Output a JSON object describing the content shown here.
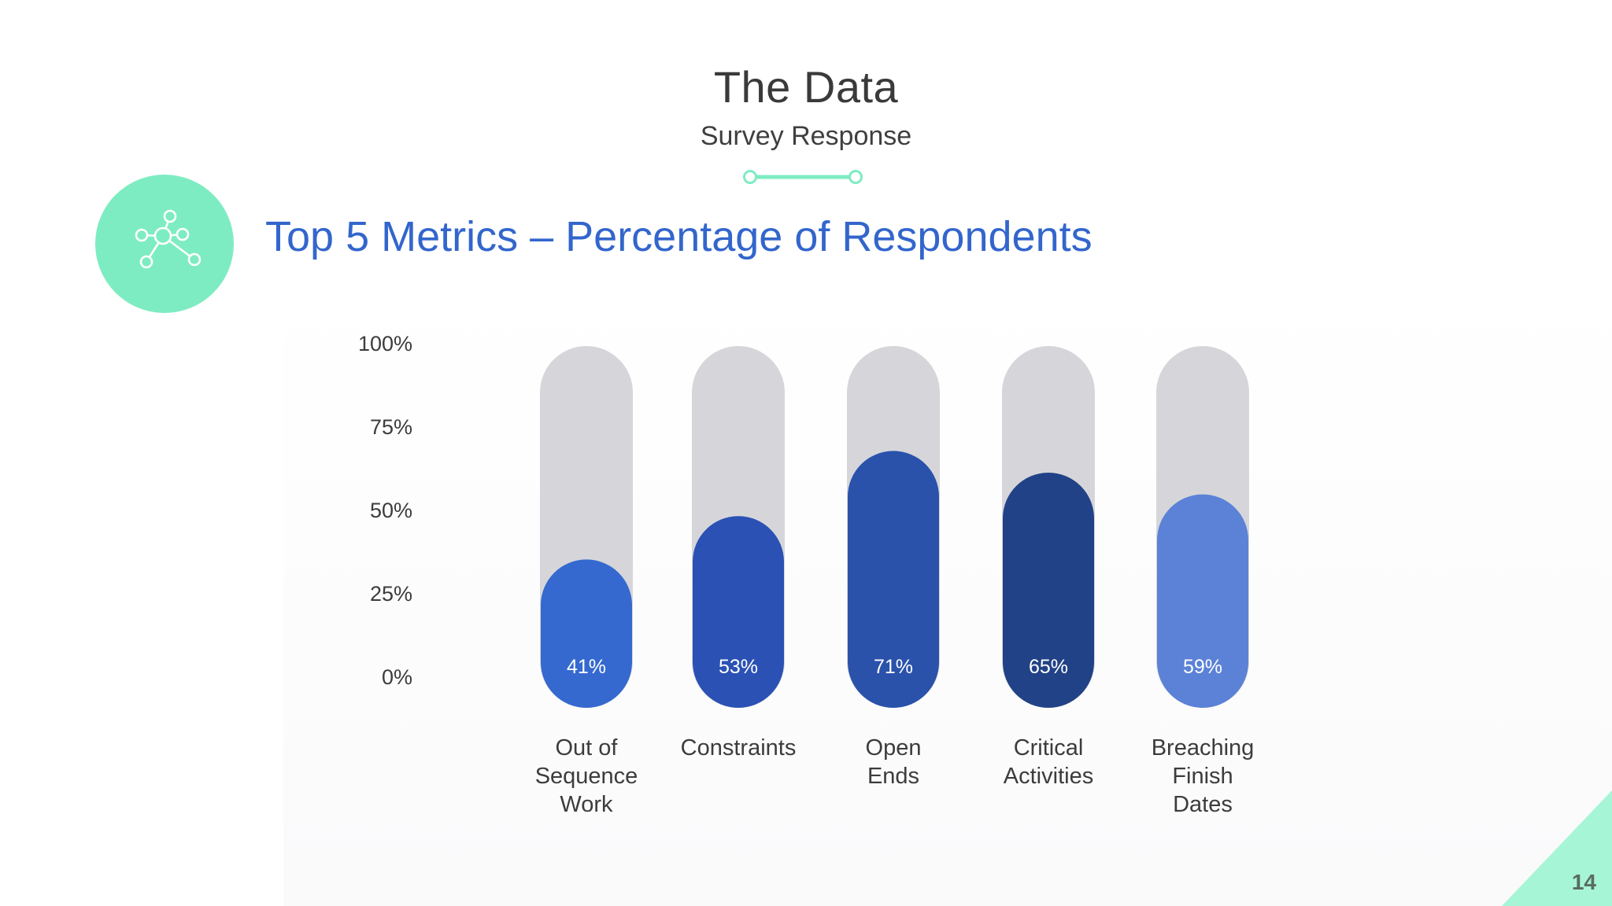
{
  "header": {
    "title": "The Data",
    "subtitle": "Survey Response"
  },
  "section": {
    "heading": "Top 5 Metrics – Percentage of Respondents",
    "icon": "network-icon"
  },
  "colors": {
    "accent": "#7eecc3",
    "heading": "#3366cc",
    "track": "#d6d6da"
  },
  "chart_data": {
    "type": "bar",
    "title": "",
    "xlabel": "",
    "ylabel": "",
    "ylim": [
      0,
      100
    ],
    "yticks": [
      "0%",
      "25%",
      "50%",
      "75%",
      "100%"
    ],
    "categories": [
      [
        "Out of",
        "Sequence",
        "Work"
      ],
      [
        "Constraints"
      ],
      [
        "Open",
        "Ends"
      ],
      [
        "Critical",
        "Activities"
      ],
      [
        "Breaching",
        "Finish",
        "Dates"
      ]
    ],
    "values": [
      41,
      53,
      71,
      65,
      59
    ],
    "data_labels": [
      "41%",
      "53%",
      "71%",
      "65%",
      "59%"
    ],
    "colors": [
      "#3569d0",
      "#2b51b4",
      "#2a52ab",
      "#224287",
      "#5b82d6"
    ],
    "grid": false,
    "legend": "none"
  },
  "page_number": "14"
}
